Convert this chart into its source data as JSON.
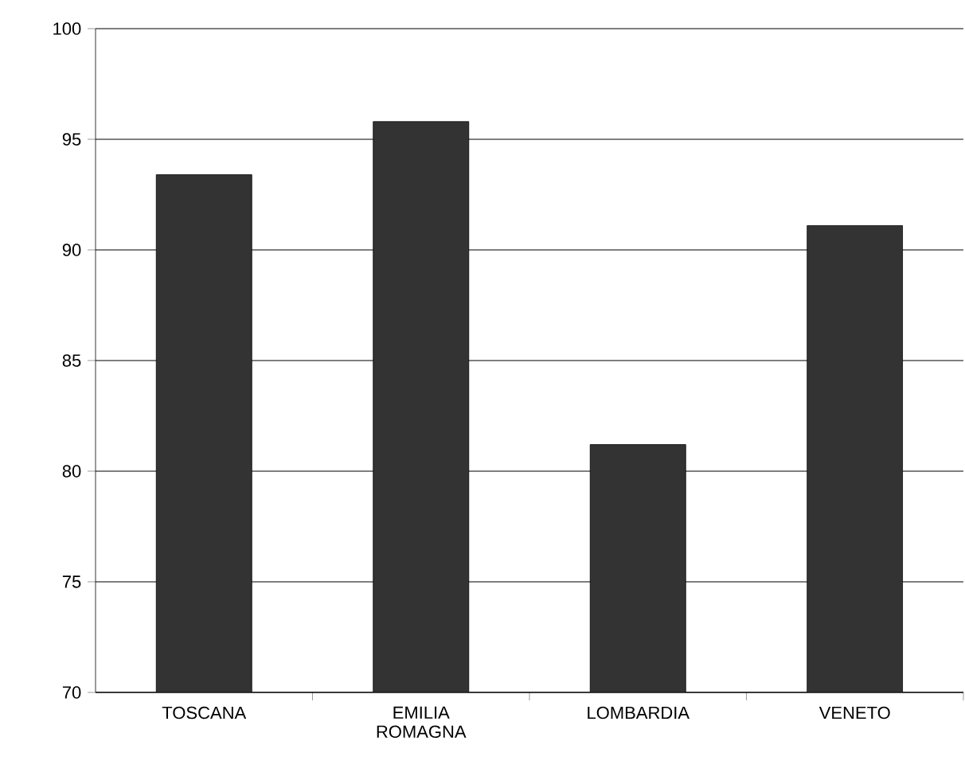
{
  "chart_data": {
    "type": "bar",
    "categories": [
      "TOSCANA",
      "EMILIA ROMAGNA",
      "LOMBARDIA",
      "VENETO"
    ],
    "values": [
      93.4,
      95.8,
      81.2,
      91.1
    ],
    "color": "#333333",
    "ylim": [
      70,
      100
    ],
    "yticks": [
      70,
      75,
      80,
      85,
      90,
      95,
      100
    ],
    "grid": "y"
  }
}
